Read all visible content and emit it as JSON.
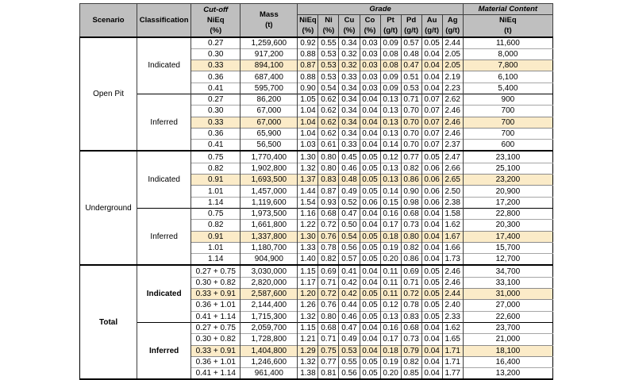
{
  "colors": {
    "header_bg": "#BFBFBF",
    "highlight_bg": "#FBEBC8",
    "grid_light": "#A6A6A6",
    "grid_dark": "#3F3F3F",
    "section_border": "#000000"
  },
  "table": {
    "header": {
      "scenario": "Scenario",
      "classification": "Classification",
      "cutoff": {
        "l1": "Cut-off",
        "l2": "NiEq",
        "l3": "(%)"
      },
      "mass": {
        "l1": "Mass",
        "l2": "(t)"
      },
      "grade_group": "Grade",
      "grade_cols": [
        {
          "l1": "NiEq",
          "l2": "(%)"
        },
        {
          "l1": "Ni",
          "l2": "(%)"
        },
        {
          "l1": "Cu",
          "l2": "(%)"
        },
        {
          "l1": "Co",
          "l2": "(%)"
        },
        {
          "l1": "Pt",
          "l2": "(g/t)"
        },
        {
          "l1": "Pd",
          "l2": "(g/t)"
        },
        {
          "l1": "Au",
          "l2": "(g/t)"
        },
        {
          "l1": "Ag",
          "l2": "(g/t)"
        }
      ],
      "material_group": "Material Content",
      "material_sub": {
        "l1": "NiEq",
        "l2": "(t)"
      }
    },
    "sections": [
      {
        "scenario": "Open Pit",
        "bold": false,
        "groups": [
          {
            "classification": "Indicated",
            "rows": [
              {
                "cutoff": "0.27",
                "mass": "1,259,600",
                "grades": [
                  "0.92",
                  "0.55",
                  "0.34",
                  "0.03",
                  "0.09",
                  "0.57",
                  "0.05",
                  "2.44"
                ],
                "content": "11,600",
                "highlight": false
              },
              {
                "cutoff": "0.30",
                "mass": "917,200",
                "grades": [
                  "0.88",
                  "0.53",
                  "0.32",
                  "0.03",
                  "0.08",
                  "0.48",
                  "0.04",
                  "2.05"
                ],
                "content": "8,000",
                "highlight": false
              },
              {
                "cutoff": "0.33",
                "mass": "894,100",
                "grades": [
                  "0.87",
                  "0.53",
                  "0.32",
                  "0.03",
                  "0.08",
                  "0.47",
                  "0.04",
                  "2.05"
                ],
                "content": "7,800",
                "highlight": true
              },
              {
                "cutoff": "0.36",
                "mass": "687,400",
                "grades": [
                  "0.88",
                  "0.53",
                  "0.33",
                  "0.03",
                  "0.09",
                  "0.51",
                  "0.04",
                  "2.19"
                ],
                "content": "6,100",
                "highlight": false
              },
              {
                "cutoff": "0.41",
                "mass": "595,700",
                "grades": [
                  "0.90",
                  "0.54",
                  "0.34",
                  "0.03",
                  "0.09",
                  "0.53",
                  "0.04",
                  "2.23"
                ],
                "content": "5,400",
                "highlight": false
              }
            ]
          },
          {
            "classification": "Inferred",
            "rows": [
              {
                "cutoff": "0.27",
                "mass": "86,200",
                "grades": [
                  "1.05",
                  "0.62",
                  "0.34",
                  "0.04",
                  "0.13",
                  "0.71",
                  "0.07",
                  "2.62"
                ],
                "content": "900",
                "highlight": false
              },
              {
                "cutoff": "0.30",
                "mass": "67,000",
                "grades": [
                  "1.04",
                  "0.62",
                  "0.34",
                  "0.04",
                  "0.13",
                  "0.70",
                  "0.07",
                  "2.46"
                ],
                "content": "700",
                "highlight": false
              },
              {
                "cutoff": "0.33",
                "mass": "67,000",
                "grades": [
                  "1.04",
                  "0.62",
                  "0.34",
                  "0.04",
                  "0.13",
                  "0.70",
                  "0.07",
                  "2.46"
                ],
                "content": "700",
                "highlight": true
              },
              {
                "cutoff": "0.36",
                "mass": "65,900",
                "grades": [
                  "1.04",
                  "0.62",
                  "0.34",
                  "0.04",
                  "0.13",
                  "0.70",
                  "0.07",
                  "2.46"
                ],
                "content": "700",
                "highlight": false
              },
              {
                "cutoff": "0.41",
                "mass": "56,500",
                "grades": [
                  "1.03",
                  "0.61",
                  "0.33",
                  "0.04",
                  "0.14",
                  "0.70",
                  "0.07",
                  "2.37"
                ],
                "content": "600",
                "highlight": false
              }
            ]
          }
        ]
      },
      {
        "scenario": "Underground",
        "bold": false,
        "groups": [
          {
            "classification": "Indicated",
            "rows": [
              {
                "cutoff": "0.75",
                "mass": "1,770,400",
                "grades": [
                  "1.30",
                  "0.80",
                  "0.45",
                  "0.05",
                  "0.12",
                  "0.77",
                  "0.05",
                  "2.47"
                ],
                "content": "23,100",
                "highlight": false
              },
              {
                "cutoff": "0.82",
                "mass": "1,902,800",
                "grades": [
                  "1.32",
                  "0.80",
                  "0.46",
                  "0.05",
                  "0.13",
                  "0.82",
                  "0.06",
                  "2.66"
                ],
                "content": "25,100",
                "highlight": false
              },
              {
                "cutoff": "0.91",
                "mass": "1,693,500",
                "grades": [
                  "1.37",
                  "0.83",
                  "0.48",
                  "0.05",
                  "0.13",
                  "0.86",
                  "0.06",
                  "2.65"
                ],
                "content": "23,200",
                "highlight": true
              },
              {
                "cutoff": "1.01",
                "mass": "1,457,000",
                "grades": [
                  "1.44",
                  "0.87",
                  "0.49",
                  "0.05",
                  "0.14",
                  "0.90",
                  "0.06",
                  "2.50"
                ],
                "content": "20,900",
                "highlight": false
              },
              {
                "cutoff": "1.14",
                "mass": "1,119,600",
                "grades": [
                  "1.54",
                  "0.93",
                  "0.52",
                  "0.06",
                  "0.15",
                  "0.98",
                  "0.06",
                  "2.38"
                ],
                "content": "17,200",
                "highlight": false
              }
            ]
          },
          {
            "classification": "Inferred",
            "rows": [
              {
                "cutoff": "0.75",
                "mass": "1,973,500",
                "grades": [
                  "1.16",
                  "0.68",
                  "0.47",
                  "0.04",
                  "0.16",
                  "0.68",
                  "0.04",
                  "1.58"
                ],
                "content": "22,800",
                "highlight": false
              },
              {
                "cutoff": "0.82",
                "mass": "1,661,800",
                "grades": [
                  "1.22",
                  "0.72",
                  "0.50",
                  "0.04",
                  "0.17",
                  "0.73",
                  "0.04",
                  "1.62"
                ],
                "content": "20,300",
                "highlight": false
              },
              {
                "cutoff": "0.91",
                "mass": "1,337,800",
                "grades": [
                  "1.30",
                  "0.76",
                  "0.54",
                  "0.05",
                  "0.18",
                  "0.80",
                  "0.04",
                  "1.67"
                ],
                "content": "17,400",
                "highlight": true
              },
              {
                "cutoff": "1.01",
                "mass": "1,180,700",
                "grades": [
                  "1.33",
                  "0.78",
                  "0.56",
                  "0.05",
                  "0.19",
                  "0.82",
                  "0.04",
                  "1.66"
                ],
                "content": "15,700",
                "highlight": false
              },
              {
                "cutoff": "1.14",
                "mass": "904,900",
                "grades": [
                  "1.40",
                  "0.82",
                  "0.57",
                  "0.05",
                  "0.20",
                  "0.86",
                  "0.04",
                  "1.73"
                ],
                "content": "12,700",
                "highlight": false
              }
            ]
          }
        ]
      },
      {
        "scenario": "Total",
        "bold": true,
        "groups": [
          {
            "classification": "Indicated",
            "rows": [
              {
                "cutoff": "0.27 + 0.75",
                "mass": "3,030,000",
                "grades": [
                  "1.15",
                  "0.69",
                  "0.41",
                  "0.04",
                  "0.11",
                  "0.69",
                  "0.05",
                  "2.46"
                ],
                "content": "34,700",
                "highlight": false
              },
              {
                "cutoff": "0.30 + 0.82",
                "mass": "2,820,000",
                "grades": [
                  "1.17",
                  "0.71",
                  "0.42",
                  "0.04",
                  "0.11",
                  "0.71",
                  "0.05",
                  "2.46"
                ],
                "content": "33,100",
                "highlight": false
              },
              {
                "cutoff": "0.33 + 0.91",
                "mass": "2,587,600",
                "grades": [
                  "1.20",
                  "0.72",
                  "0.42",
                  "0.05",
                  "0.11",
                  "0.72",
                  "0.05",
                  "2.44"
                ],
                "content": "31,000",
                "highlight": true
              },
              {
                "cutoff": "0.36 + 1.01",
                "mass": "2,144,400",
                "grades": [
                  "1.26",
                  "0.76",
                  "0.44",
                  "0.05",
                  "0.12",
                  "0.78",
                  "0.05",
                  "2.40"
                ],
                "content": "27,000",
                "highlight": false
              },
              {
                "cutoff": "0.41 + 1.14",
                "mass": "1,715,300",
                "grades": [
                  "1.32",
                  "0.80",
                  "0.46",
                  "0.05",
                  "0.13",
                  "0.83",
                  "0.05",
                  "2.33"
                ],
                "content": "22,600",
                "highlight": false
              }
            ]
          },
          {
            "classification": "Inferred",
            "rows": [
              {
                "cutoff": "0.27 + 0.75",
                "mass": "2,059,700",
                "grades": [
                  "1.15",
                  "0.68",
                  "0.47",
                  "0.04",
                  "0.16",
                  "0.68",
                  "0.04",
                  "1.62"
                ],
                "content": "23,700",
                "highlight": false
              },
              {
                "cutoff": "0.30 + 0.82",
                "mass": "1,728,800",
                "grades": [
                  "1.21",
                  "0.71",
                  "0.49",
                  "0.04",
                  "0.17",
                  "0.73",
                  "0.04",
                  "1.65"
                ],
                "content": "21,000",
                "highlight": false
              },
              {
                "cutoff": "0.33 + 0.91",
                "mass": "1,404,800",
                "grades": [
                  "1.29",
                  "0.75",
                  "0.53",
                  "0.04",
                  "0.18",
                  "0.79",
                  "0.04",
                  "1.71"
                ],
                "content": "18,100",
                "highlight": true
              },
              {
                "cutoff": "0.36 + 1.01",
                "mass": "1,246,600",
                "grades": [
                  "1.32",
                  "0.77",
                  "0.55",
                  "0.05",
                  "0.19",
                  "0.82",
                  "0.04",
                  "1.71"
                ],
                "content": "16,400",
                "highlight": false
              },
              {
                "cutoff": "0.41 + 1.14",
                "mass": "961,400",
                "grades": [
                  "1.38",
                  "0.81",
                  "0.56",
                  "0.05",
                  "0.20",
                  "0.85",
                  "0.04",
                  "1.77"
                ],
                "content": "13,200",
                "highlight": false
              }
            ]
          }
        ]
      }
    ]
  }
}
